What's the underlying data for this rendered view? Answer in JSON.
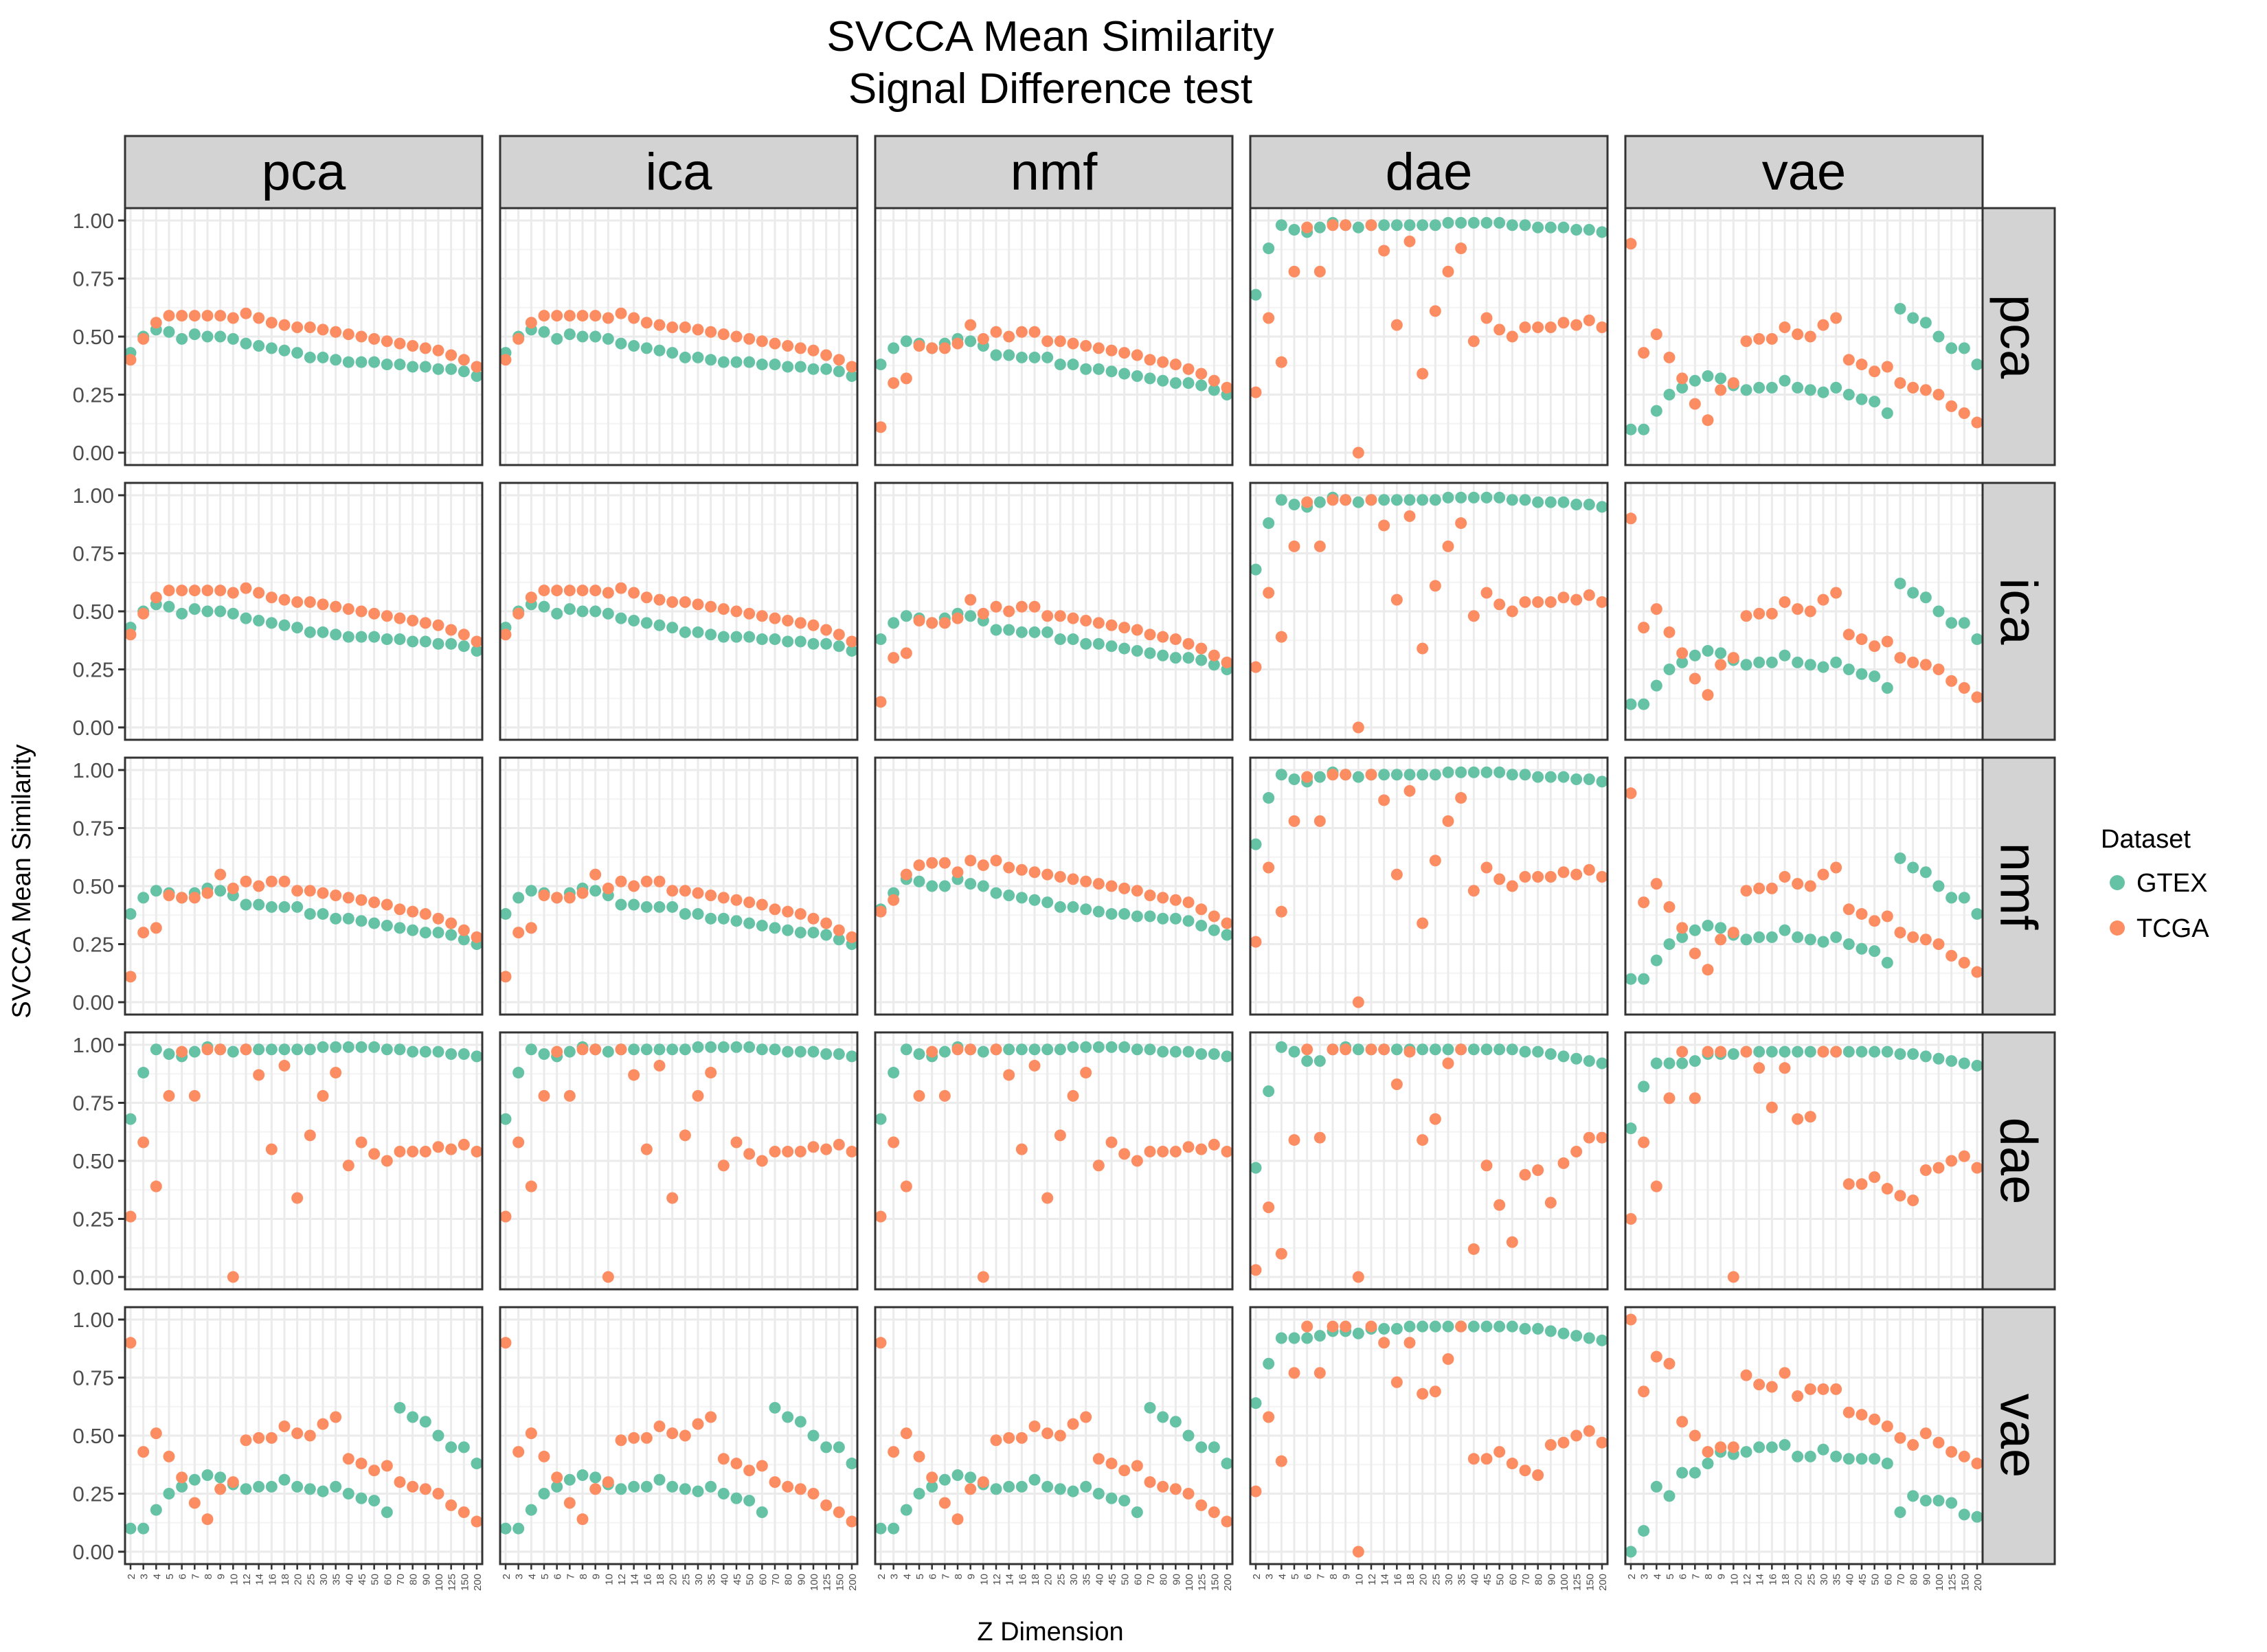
{
  "chart_data": {
    "type": "scatter",
    "title_lines": [
      "SVCCA Mean Similarity",
      "Signal Difference test"
    ],
    "xlabel": "Z Dimension",
    "ylabel": "SVCCA Mean Similarity",
    "col_facets": [
      "pca",
      "ica",
      "nmf",
      "dae",
      "vae"
    ],
    "row_facets": [
      "pca",
      "ica",
      "nmf",
      "dae",
      "vae"
    ],
    "x_categories": [
      "2",
      "3",
      "4",
      "5",
      "6",
      "7",
      "8",
      "9",
      "10",
      "12",
      "14",
      "16",
      "18",
      "20",
      "25",
      "30",
      "35",
      "40",
      "45",
      "50",
      "60",
      "70",
      "80",
      "90",
      "100",
      "125",
      "150",
      "200"
    ],
    "y_ticks": [
      "0.00",
      "0.25",
      "0.50",
      "0.75",
      "1.00"
    ],
    "ylim": [
      0,
      1
    ],
    "grid": true,
    "legend": {
      "title": "Dataset",
      "placement": "right",
      "entries": [
        {
          "name": "GTEX",
          "color": "#66C2A5"
        },
        {
          "name": "TCGA",
          "color": "#FC8D62"
        }
      ]
    },
    "panel_background": "#ffffff",
    "strip_color": "#D3D3D3",
    "gridline_color": "#EBEBEB",
    "profiles": {
      "lin_gtex": [
        0.43,
        0.5,
        0.53,
        0.52,
        0.49,
        0.51,
        0.5,
        0.5,
        0.49,
        0.47,
        0.46,
        0.45,
        0.44,
        0.43,
        0.41,
        0.41,
        0.4,
        0.39,
        0.39,
        0.39,
        0.38,
        0.38,
        0.37,
        0.37,
        0.36,
        0.36,
        0.35,
        0.33
      ],
      "lin_tcga": [
        0.4,
        0.49,
        0.56,
        0.59,
        0.59,
        0.59,
        0.59,
        0.59,
        0.58,
        0.6,
        0.58,
        0.56,
        0.55,
        0.54,
        0.54,
        0.53,
        0.52,
        0.51,
        0.5,
        0.49,
        0.48,
        0.47,
        0.46,
        0.45,
        0.44,
        0.42,
        0.4,
        0.37
      ],
      "nmf_gtex": [
        0.38,
        0.45,
        0.48,
        0.47,
        0.45,
        0.47,
        0.49,
        0.48,
        0.46,
        0.42,
        0.42,
        0.41,
        0.41,
        0.41,
        0.38,
        0.38,
        0.36,
        0.36,
        0.35,
        0.34,
        0.33,
        0.32,
        0.31,
        0.3,
        0.3,
        0.29,
        0.27,
        0.25
      ],
      "nmf_tcga": [
        0.11,
        0.3,
        0.32,
        0.46,
        0.45,
        0.45,
        0.47,
        0.55,
        0.49,
        0.52,
        0.5,
        0.52,
        0.52,
        0.48,
        0.48,
        0.47,
        0.46,
        0.45,
        0.44,
        0.43,
        0.42,
        0.4,
        0.39,
        0.38,
        0.36,
        0.34,
        0.31,
        0.28
      ],
      "dae_gtex": [
        0.68,
        0.88,
        0.98,
        0.96,
        0.95,
        0.97,
        0.99,
        0.98,
        0.97,
        0.98,
        0.98,
        0.98,
        0.98,
        0.98,
        0.98,
        0.99,
        0.99,
        0.99,
        0.99,
        0.99,
        0.98,
        0.98,
        0.97,
        0.97,
        0.97,
        0.96,
        0.96,
        0.95
      ],
      "dae_tcga": [
        0.26,
        0.58,
        0.39,
        0.78,
        0.97,
        0.78,
        0.98,
        0.98,
        0.0,
        0.98,
        0.87,
        0.55,
        0.91,
        0.34,
        0.61,
        0.78,
        0.88,
        0.48,
        0.58,
        0.53,
        0.5,
        0.54,
        0.54,
        0.54,
        0.56,
        0.55,
        0.57,
        0.54
      ],
      "vae_gtex": [
        0.1,
        0.1,
        0.18,
        0.25,
        0.28,
        0.31,
        0.33,
        0.32,
        0.29,
        0.27,
        0.28,
        0.28,
        0.31,
        0.28,
        0.27,
        0.26,
        0.28,
        0.25,
        0.23,
        0.22,
        0.17,
        0.62,
        0.58,
        0.56,
        0.5,
        0.45,
        0.45,
        0.38
      ],
      "vae_tcga": [
        0.9,
        0.43,
        0.51,
        0.41,
        0.32,
        0.21,
        0.14,
        0.27,
        0.3,
        0.48,
        0.49,
        0.49,
        0.54,
        0.51,
        0.5,
        0.55,
        0.58,
        0.4,
        0.38,
        0.35,
        0.37,
        0.3,
        0.28,
        0.27,
        0.25,
        0.2,
        0.17,
        0.13
      ],
      "dd_gtex": [
        0.47,
        0.8,
        0.99,
        0.97,
        0.93,
        0.93,
        0.98,
        0.99,
        0.98,
        0.98,
        0.98,
        0.98,
        0.98,
        0.98,
        0.98,
        0.98,
        0.98,
        0.98,
        0.98,
        0.98,
        0.98,
        0.97,
        0.97,
        0.96,
        0.95,
        0.94,
        0.93,
        0.92
      ],
      "dd_tcga": [
        0.03,
        0.3,
        0.1,
        0.59,
        0.98,
        0.6,
        0.98,
        0.98,
        0.0,
        0.98,
        0.98,
        0.83,
        0.97,
        0.59,
        0.68,
        0.92,
        0.98,
        0.12,
        0.48,
        0.31,
        0.15,
        0.44,
        0.46,
        0.32,
        0.49,
        0.54,
        0.6,
        0.6
      ],
      "dv_gtex": [
        0.64,
        0.82,
        0.92,
        0.92,
        0.92,
        0.93,
        0.96,
        0.96,
        0.96,
        0.97,
        0.97,
        0.97,
        0.97,
        0.97,
        0.97,
        0.97,
        0.97,
        0.97,
        0.97,
        0.97,
        0.97,
        0.96,
        0.96,
        0.95,
        0.94,
        0.93,
        0.92,
        0.91
      ],
      "dv_tcga": [
        0.25,
        0.58,
        0.39,
        0.77,
        0.97,
        0.77,
        0.97,
        0.97,
        0.0,
        0.97,
        0.9,
        0.73,
        0.9,
        0.68,
        0.69,
        0.97,
        0.97,
        0.4,
        0.4,
        0.43,
        0.38,
        0.35,
        0.33,
        0.46,
        0.47,
        0.5,
        0.52,
        0.47
      ],
      "vd_gtex": [
        0.64,
        0.81,
        0.92,
        0.92,
        0.92,
        0.93,
        0.95,
        0.95,
        0.94,
        0.96,
        0.96,
        0.96,
        0.97,
        0.97,
        0.97,
        0.97,
        0.97,
        0.97,
        0.97,
        0.97,
        0.97,
        0.96,
        0.96,
        0.95,
        0.94,
        0.93,
        0.92,
        0.91
      ],
      "vd_tcga": [
        0.26,
        0.58,
        0.39,
        0.77,
        0.97,
        0.77,
        0.97,
        0.97,
        0.0,
        0.97,
        0.9,
        0.73,
        0.9,
        0.68,
        0.69,
        0.83,
        0.97,
        0.4,
        0.4,
        0.43,
        0.38,
        0.35,
        0.33,
        0.46,
        0.47,
        0.5,
        0.52,
        0.47
      ],
      "vv_gtex": [
        0.0,
        0.09,
        0.28,
        0.24,
        0.34,
        0.34,
        0.38,
        0.43,
        0.42,
        0.43,
        0.45,
        0.45,
        0.46,
        0.41,
        0.41,
        0.44,
        0.41,
        0.4,
        0.4,
        0.4,
        0.38,
        0.17,
        0.24,
        0.22,
        0.22,
        0.21,
        0.16,
        0.15
      ],
      "vv_tcga": [
        1.0,
        0.69,
        0.84,
        0.81,
        0.56,
        0.5,
        0.43,
        0.45,
        0.45,
        0.76,
        0.72,
        0.71,
        0.77,
        0.67,
        0.7,
        0.7,
        0.7,
        0.6,
        0.59,
        0.57,
        0.54,
        0.49,
        0.46,
        0.51,
        0.47,
        0.43,
        0.41,
        0.38
      ],
      "nn_gtex": [
        0.4,
        0.47,
        0.53,
        0.52,
        0.5,
        0.5,
        0.53,
        0.51,
        0.5,
        0.47,
        0.46,
        0.45,
        0.44,
        0.43,
        0.41,
        0.41,
        0.4,
        0.39,
        0.38,
        0.38,
        0.37,
        0.37,
        0.36,
        0.36,
        0.35,
        0.33,
        0.31,
        0.29
      ],
      "nn_tcga": [
        0.39,
        0.44,
        0.55,
        0.59,
        0.6,
        0.6,
        0.56,
        0.61,
        0.59,
        0.61,
        0.58,
        0.57,
        0.56,
        0.55,
        0.54,
        0.53,
        0.52,
        0.51,
        0.5,
        0.49,
        0.48,
        0.46,
        0.45,
        0.44,
        0.43,
        0.4,
        0.37,
        0.34
      ]
    },
    "panels": [
      [
        [
          "lin_gtex",
          "lin_tcga"
        ],
        [
          "lin_gtex",
          "lin_tcga"
        ],
        [
          "nmf_gtex",
          "nmf_tcga"
        ],
        [
          "dae_gtex",
          "dae_tcga"
        ],
        [
          "vae_gtex",
          "vae_tcga"
        ]
      ],
      [
        [
          "lin_gtex",
          "lin_tcga"
        ],
        [
          "lin_gtex",
          "lin_tcga"
        ],
        [
          "nmf_gtex",
          "nmf_tcga"
        ],
        [
          "dae_gtex",
          "dae_tcga"
        ],
        [
          "vae_gtex",
          "vae_tcga"
        ]
      ],
      [
        [
          "nmf_gtex",
          "nmf_tcga"
        ],
        [
          "nmf_gtex",
          "nmf_tcga"
        ],
        [
          "nn_gtex",
          "nn_tcga"
        ],
        [
          "dae_gtex",
          "dae_tcga"
        ],
        [
          "vae_gtex",
          "vae_tcga"
        ]
      ],
      [
        [
          "dae_gtex",
          "dae_tcga"
        ],
        [
          "dae_gtex",
          "dae_tcga"
        ],
        [
          "dae_gtex",
          "dae_tcga"
        ],
        [
          "dd_gtex",
          "dd_tcga"
        ],
        [
          "dv_gtex",
          "dv_tcga"
        ]
      ],
      [
        [
          "vae_gtex",
          "vae_tcga"
        ],
        [
          "vae_gtex",
          "vae_tcga"
        ],
        [
          "vae_gtex",
          "vae_tcga"
        ],
        [
          "vd_gtex",
          "vd_tcga"
        ],
        [
          "vv_gtex",
          "vv_tcga"
        ]
      ]
    ]
  }
}
